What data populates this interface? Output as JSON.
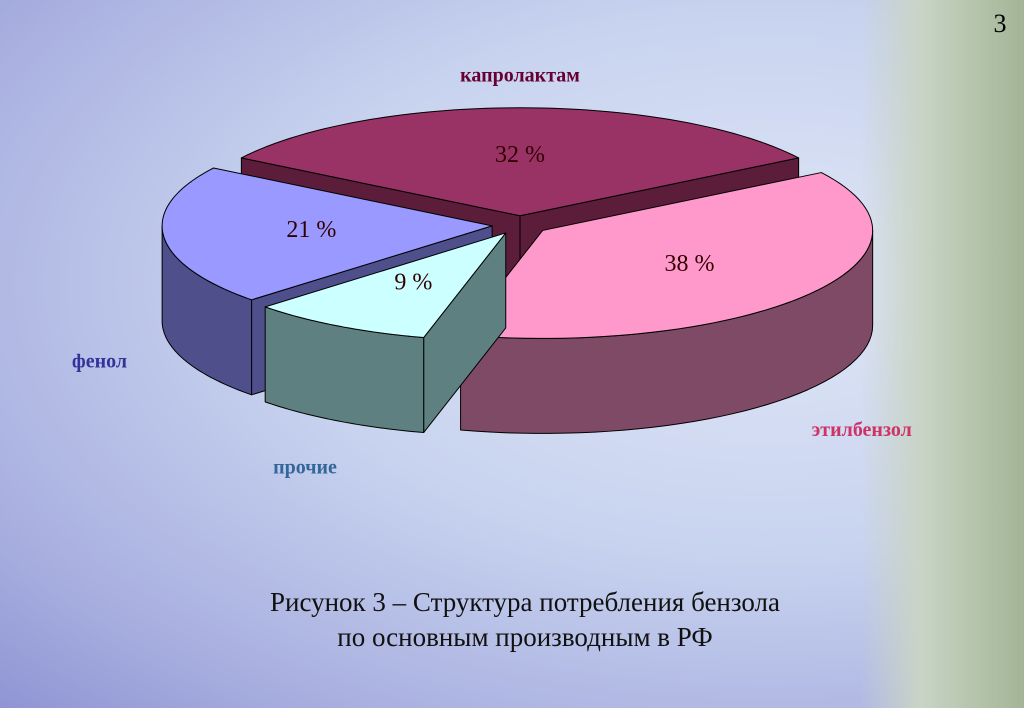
{
  "page_number": "3",
  "chart_data": {
    "type": "pie",
    "categories": [
      "капролактам",
      "этилбензол",
      "прочие",
      "фенол"
    ],
    "values": [
      32,
      38,
      9,
      21
    ],
    "value_labels": [
      "32 %",
      "38 %",
      "9 %",
      "21 %"
    ],
    "colors": [
      "#993366",
      "#ff99cc",
      "#ccffff",
      "#9999ff"
    ],
    "side_colors": [
      "#5c1d3a",
      "#7f4a66",
      "#5f8080",
      "#4f4f8c"
    ],
    "label_colors": [
      "#660033",
      "#cc3366",
      "#336699",
      "#333399"
    ]
  },
  "caption": [
    "Рисунок 3 – Структура потребления бензола",
    "по основным производным в РФ"
  ]
}
